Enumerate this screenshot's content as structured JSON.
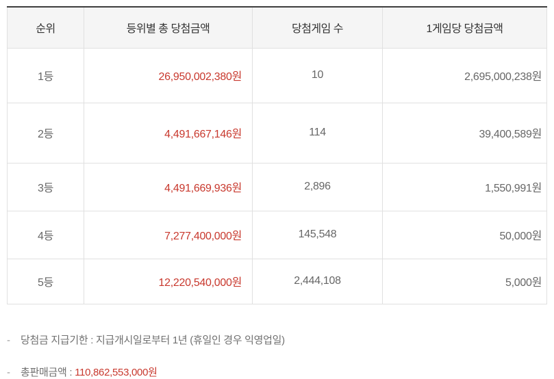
{
  "colors": {
    "amount_red": "#c8382d",
    "header_background": "#f5f5f5",
    "cell_border": "#e0e0e0",
    "table_top_border": "#3d3d3d",
    "header_text": "#333333",
    "cell_text": "#666666"
  },
  "table": {
    "headers": [
      "순위",
      "등위별 총 당첨금액",
      "당첨게임 수",
      "1게임당 당첨금액"
    ],
    "rows": [
      {
        "rank": "1등",
        "total_prize": "26,950,002,380원",
        "winning_games": "10",
        "prize_per_game": "2,695,000,238원"
      },
      {
        "rank": "2등",
        "total_prize": "4,491,667,146원",
        "winning_games": "114",
        "prize_per_game": "39,400,589원"
      },
      {
        "rank": "3등",
        "total_prize": "4,491,669,936원",
        "winning_games": "2,896",
        "prize_per_game": "1,550,991원"
      },
      {
        "rank": "4등",
        "total_prize": "7,277,400,000원",
        "winning_games": "145,548",
        "prize_per_game": "50,000원"
      },
      {
        "rank": "5등",
        "total_prize": "12,220,540,000원",
        "winning_games": "2,444,108",
        "prize_per_game": "5,000원"
      }
    ]
  },
  "notes": {
    "payment_deadline": {
      "dash": "-",
      "text": "당첨금 지급기한 : 지급개시일로부터 1년 (휴일인 경우 익영업일)"
    },
    "total_sales": {
      "dash": "-",
      "label": "총판매금액 : ",
      "value": "110,862,553,000원"
    }
  }
}
